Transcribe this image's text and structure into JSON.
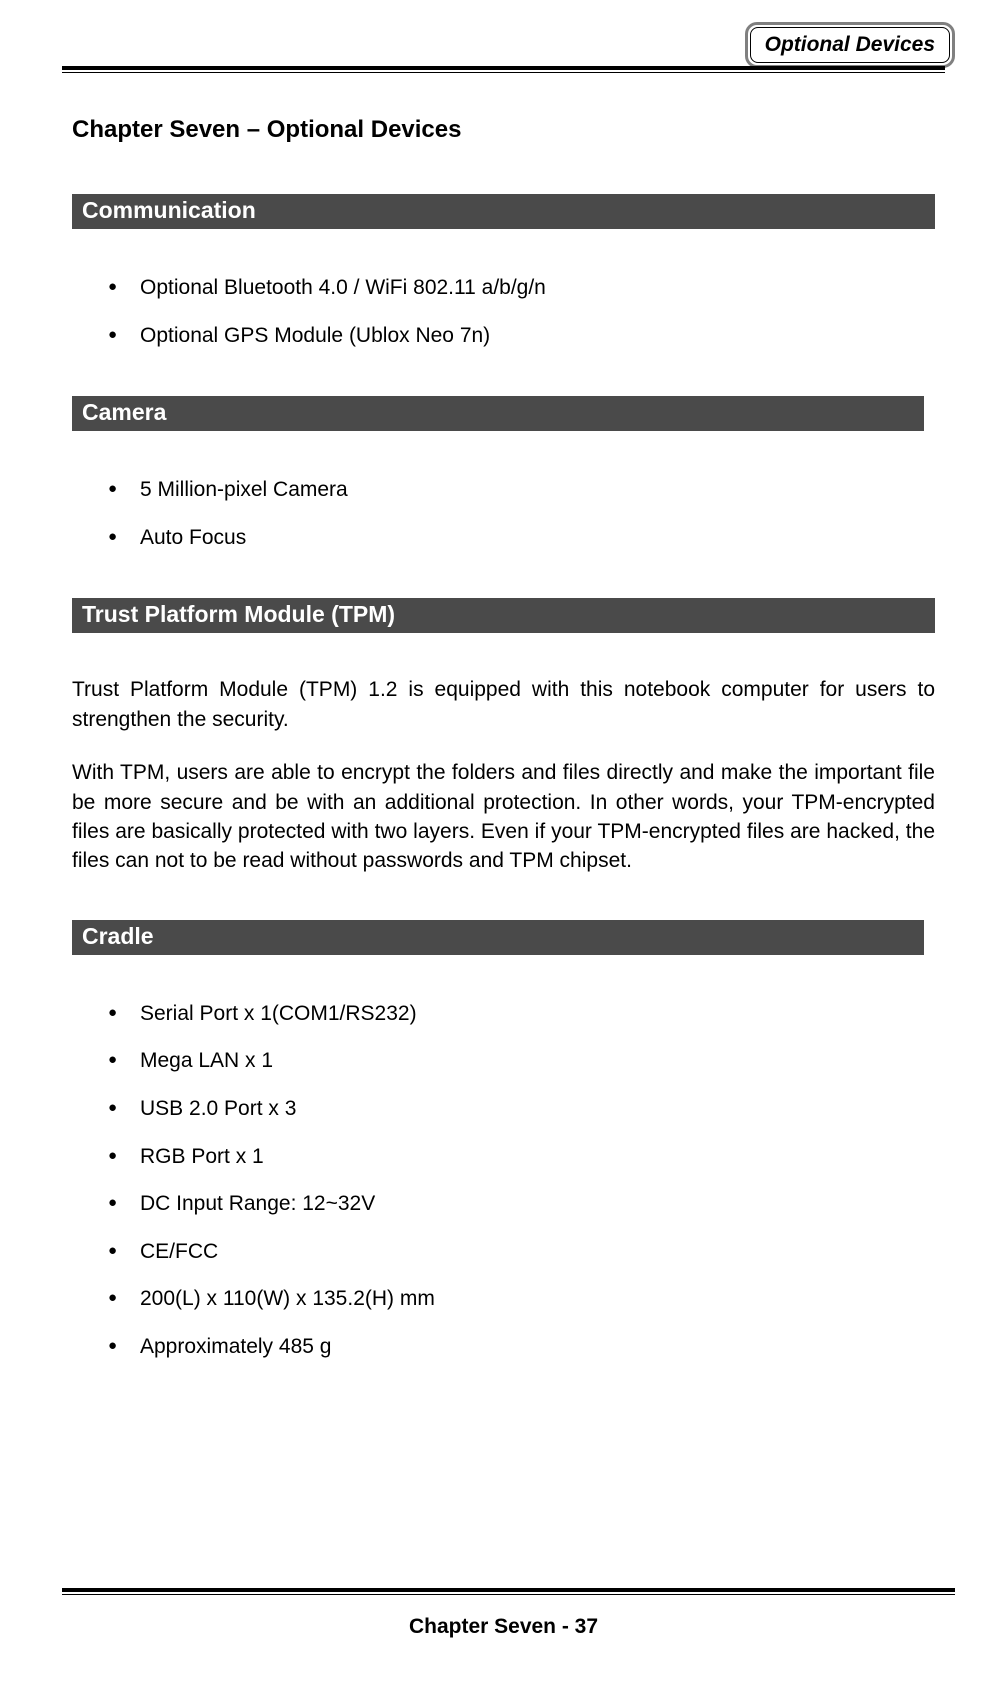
{
  "header": {
    "badge": "Optional Devices"
  },
  "chapter_title": "Chapter Seven – Optional Devices",
  "sections": {
    "communication": {
      "title": "Communication",
      "items": [
        "Optional Bluetooth 4.0 / WiFi 802.11 a/b/g/n",
        "Optional GPS Module (Ublox Neo 7n)"
      ]
    },
    "camera": {
      "title": "Camera",
      "items": [
        "5 Million-pixel Camera",
        "Auto Focus"
      ]
    },
    "tpm": {
      "title": "Trust Platform Module (TPM)",
      "para1": "Trust Platform Module (TPM) 1.2 is equipped with this notebook computer for users to strengthen the security.",
      "para2": "With TPM, users are able to encrypt the folders and files directly and make the important file be more secure and be with an additional protection. In other words, your TPM-encrypted files are basically protected with two layers. Even if your TPM-encrypted files are hacked, the files can not to be read without passwords and TPM chipset."
    },
    "cradle": {
      "title": "Cradle",
      "items": [
        "Serial Port x 1(COM1/RS232)",
        "Mega LAN x 1",
        "USB 2.0 Port x 3",
        "RGB Port x 1",
        "DC Input Range: 12~32V",
        "CE/FCC",
        "200(L) x 110(W) x 135.2(H) mm",
        "Approximately 485 g"
      ]
    }
  },
  "footer": "Chapter Seven - 37",
  "colors": {
    "section_bg": "#4a4a4a",
    "section_text": "#ffffff",
    "body_text": "#000000",
    "badge_border": "#808080",
    "page_bg": "#ffffff"
  },
  "typography": {
    "title_fontsize": 24,
    "section_fontsize": 23,
    "body_fontsize": 21,
    "badge_fontsize": 21,
    "font_family": "Arial"
  }
}
